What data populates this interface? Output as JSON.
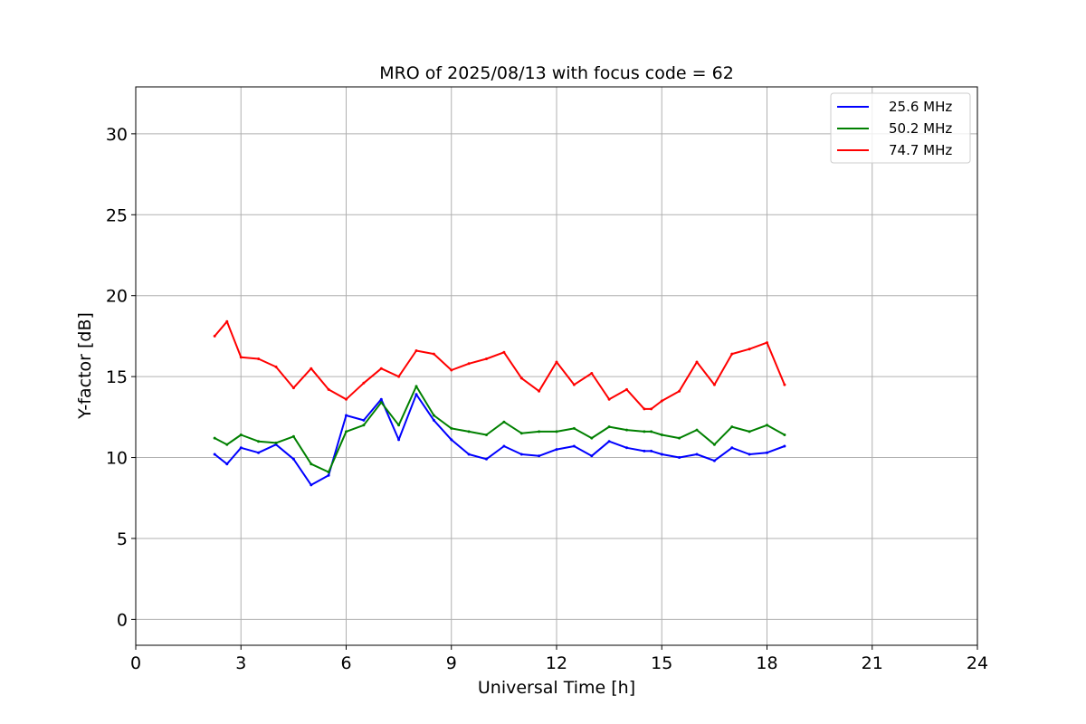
{
  "chart_data": {
    "type": "line",
    "title": "MRO of 2025/08/13 with focus code = 62",
    "xlabel": "Universal Time [h]",
    "ylabel": "Y-factor [dB]",
    "xlim": [
      0,
      24
    ],
    "ylim": [
      -1.6,
      32.9
    ],
    "xticks": [
      0,
      3,
      6,
      9,
      12,
      15,
      18,
      21,
      24
    ],
    "yticks": [
      0,
      5,
      10,
      15,
      20,
      25,
      30
    ],
    "grid": true,
    "legend_position": "top-right",
    "series": [
      {
        "name": "25.6 MHz",
        "color": "#0000ff",
        "x": [
          2.25,
          2.6,
          3.0,
          3.5,
          4.0,
          4.5,
          5.0,
          5.5,
          6.0,
          6.5,
          7.0,
          7.5,
          8.0,
          8.5,
          9.0,
          9.5,
          10.0,
          10.5,
          11.0,
          11.5,
          12.0,
          12.5,
          13.0,
          13.5,
          14.0,
          14.5,
          14.7,
          15.0,
          15.5,
          16.0,
          16.5,
          17.0,
          17.5,
          18.0,
          18.5
        ],
        "y": [
          10.2,
          9.6,
          10.6,
          10.3,
          10.8,
          9.9,
          8.3,
          8.9,
          12.6,
          12.3,
          13.6,
          11.1,
          13.9,
          12.3,
          11.1,
          10.2,
          9.9,
          10.7,
          10.2,
          10.1,
          10.5,
          10.7,
          10.1,
          11.0,
          10.6,
          10.4,
          10.4,
          10.2,
          10.0,
          10.2,
          9.8,
          10.6,
          10.2,
          10.3,
          10.7
        ]
      },
      {
        "name": "50.2 MHz",
        "color": "#008000",
        "x": [
          2.25,
          2.6,
          3.0,
          3.5,
          4.0,
          4.5,
          5.0,
          5.5,
          6.0,
          6.5,
          7.0,
          7.5,
          8.0,
          8.5,
          9.0,
          9.5,
          10.0,
          10.5,
          11.0,
          11.5,
          12.0,
          12.5,
          13.0,
          13.5,
          14.0,
          14.5,
          14.7,
          15.0,
          15.5,
          16.0,
          16.5,
          17.0,
          17.5,
          18.0,
          18.5
        ],
        "y": [
          11.2,
          10.8,
          11.4,
          11.0,
          10.9,
          11.3,
          9.6,
          9.1,
          11.6,
          12.0,
          13.4,
          12.0,
          14.4,
          12.6,
          11.8,
          11.6,
          11.4,
          12.2,
          11.5,
          11.6,
          11.6,
          11.8,
          11.2,
          11.9,
          11.7,
          11.6,
          11.6,
          11.4,
          11.2,
          11.7,
          10.8,
          11.9,
          11.6,
          12.0,
          11.4
        ]
      },
      {
        "name": "74.7 MHz",
        "color": "#ff0000",
        "x": [
          2.25,
          2.6,
          3.0,
          3.5,
          4.0,
          4.5,
          5.0,
          5.5,
          6.0,
          6.5,
          7.0,
          7.5,
          8.0,
          8.5,
          9.0,
          9.5,
          10.0,
          10.5,
          11.0,
          11.5,
          12.0,
          12.5,
          13.0,
          13.5,
          14.0,
          14.5,
          14.7,
          15.0,
          15.5,
          16.0,
          16.5,
          17.0,
          17.5,
          18.0,
          18.5
        ],
        "y": [
          17.5,
          18.4,
          16.2,
          16.1,
          15.6,
          14.3,
          15.5,
          14.2,
          13.6,
          14.6,
          15.5,
          15.0,
          16.6,
          16.4,
          15.4,
          15.8,
          16.1,
          16.5,
          14.9,
          14.1,
          15.9,
          14.5,
          15.2,
          13.6,
          14.2,
          13.0,
          13.0,
          13.5,
          14.1,
          15.9,
          14.5,
          16.4,
          16.7,
          17.1,
          14.5
        ]
      }
    ]
  }
}
